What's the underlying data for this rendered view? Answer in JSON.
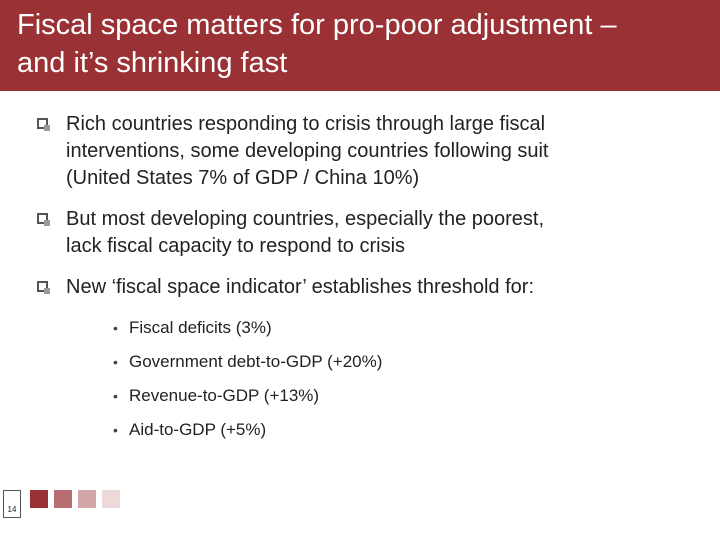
{
  "header": {
    "title_lines": [
      "Fiscal space matters for pro-poor adjustment –",
      "and it’s shrinking fast"
    ]
  },
  "bullets": [
    {
      "lines": [
        "Rich countries responding to crisis through large fiscal",
        "interventions, some developing countries following suit",
        "(United States 7% of GDP / China 10%)"
      ]
    },
    {
      "lines": [
        "But most developing countries, especially the poorest,",
        "lack fiscal capacity to respond to crisis"
      ]
    },
    {
      "lines": [
        "New ‘fiscal space indicator’ establishes threshold for:"
      ]
    }
  ],
  "sub_bullets": [
    "Fiscal deficits (3%)",
    "Government debt-to-GDP (+20%)",
    "Revenue-to-GDP (+13%)",
    "Aid-to-GDP (+5%)"
  ],
  "footer": {
    "page_number": "14",
    "swatches": [
      "#9a3134",
      "#b86e70",
      "#d3a6a7",
      "#eed9da"
    ]
  }
}
